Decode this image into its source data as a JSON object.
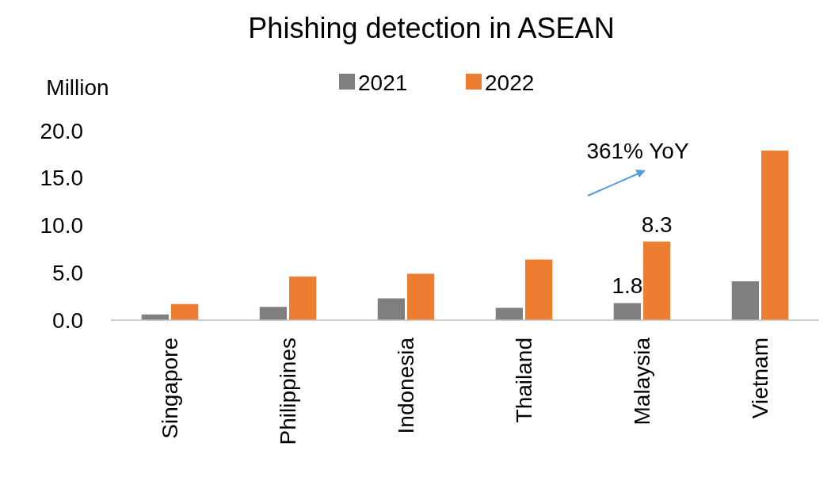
{
  "chart_data": {
    "type": "bar",
    "title": "Phishing detection in ASEAN",
    "ylabel": "Million",
    "categories": [
      "Singapore",
      "Philippines",
      "Indonesia",
      "Thailand",
      "Malaysia",
      "Vietnam"
    ],
    "series": [
      {
        "name": "2021",
        "color": "#7f7f7f",
        "values": [
          0.6,
          1.4,
          2.3,
          1.3,
          1.8,
          4.1
        ],
        "value_labels": [
          null,
          null,
          null,
          null,
          "1.8",
          null
        ]
      },
      {
        "name": "2022",
        "color": "#ed7d31",
        "values": [
          1.7,
          4.6,
          4.9,
          6.4,
          8.3,
          17.9
        ],
        "value_labels": [
          null,
          null,
          null,
          null,
          "8.3",
          null
        ]
      }
    ],
    "ylim": [
      0,
      20
    ],
    "yticks": [
      {
        "value": 0,
        "label": "0.0"
      },
      {
        "value": 5,
        "label": "5.0"
      },
      {
        "value": 10,
        "label": "10.0"
      },
      {
        "value": 15,
        "label": "15.0"
      },
      {
        "value": 20,
        "label": "20.0"
      }
    ],
    "annotations": [
      "361% YoY"
    ],
    "legend": "top",
    "grid": false
  }
}
